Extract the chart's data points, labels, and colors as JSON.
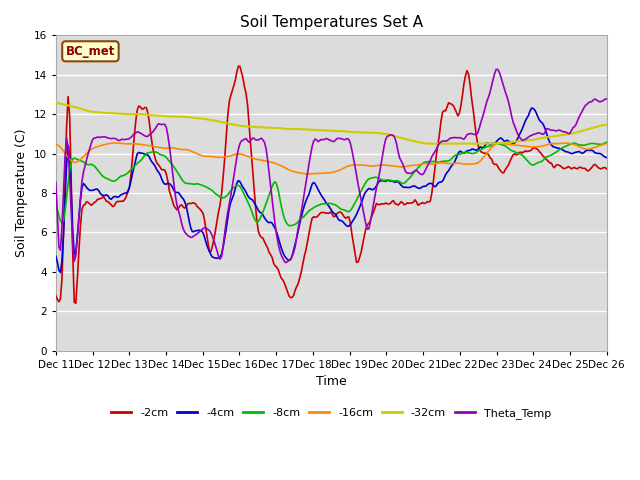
{
  "title": "Soil Temperatures Set A",
  "xlabel": "Time",
  "ylabel": "Soil Temperature (C)",
  "ylim": [
    0,
    16
  ],
  "yticks": [
    0,
    2,
    4,
    6,
    8,
    10,
    12,
    14,
    16
  ],
  "x_labels": [
    "Dec 11",
    "Dec 12",
    "Dec 13",
    "Dec 14",
    "Dec 15",
    "Dec 16",
    "Dec 17",
    "Dec 18",
    "Dec 19",
    "Dec 20",
    "Dec 21",
    "Dec 22",
    "Dec 23",
    "Dec 24",
    "Dec 25",
    "Dec 26"
  ],
  "label_annotation": "BC_met",
  "background_color": "#dcdcdc",
  "series": {
    "-2cm": {
      "color": "#cc0000",
      "lw": 1.2
    },
    "-4cm": {
      "color": "#0000cc",
      "lw": 1.2
    },
    "-8cm": {
      "color": "#00bb00",
      "lw": 1.2
    },
    "-16cm": {
      "color": "#ff8800",
      "lw": 1.2
    },
    "-32cm": {
      "color": "#cccc00",
      "lw": 1.5
    },
    "Theta_Temp": {
      "color": "#9900bb",
      "lw": 1.2
    }
  }
}
